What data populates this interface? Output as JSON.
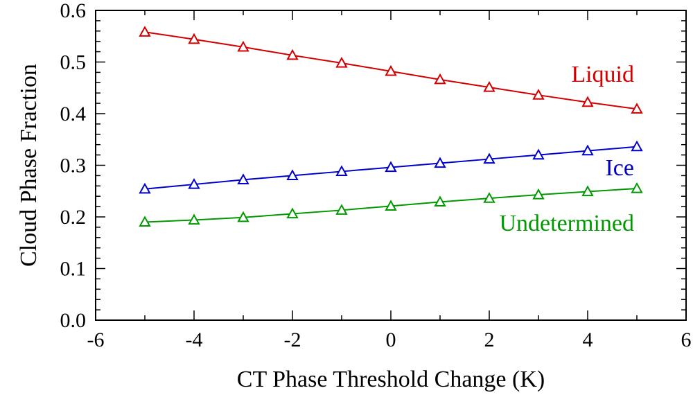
{
  "chart_data": {
    "type": "line",
    "xlabel": "CT Phase Threshold Change (K)",
    "ylabel": "Cloud Phase Fraction",
    "xlim": [
      -6,
      6
    ],
    "ylim": [
      0.0,
      0.6
    ],
    "xticks": [
      -6,
      -4,
      -2,
      0,
      2,
      4,
      6
    ],
    "xtick_labels": [
      "-6",
      "-4",
      "-2",
      "0",
      "2",
      "4",
      "6"
    ],
    "yticks": [
      0.0,
      0.1,
      0.2,
      0.3,
      0.4,
      0.5,
      0.6
    ],
    "ytick_labels": [
      "0.0",
      "0.1",
      "0.2",
      "0.3",
      "0.4",
      "0.5",
      "0.6"
    ],
    "x": [
      -5,
      -4,
      -3,
      -2,
      -1,
      0,
      1,
      2,
      3,
      4,
      5
    ],
    "grid": false,
    "marker": "triangle-open",
    "series": [
      {
        "name": "Liquid",
        "color": "#d40000",
        "values": [
          0.558,
          0.544,
          0.529,
          0.513,
          0.498,
          0.482,
          0.466,
          0.451,
          0.436,
          0.422,
          0.409
        ]
      },
      {
        "name": "Ice",
        "color": "#0000cc",
        "values": [
          0.254,
          0.263,
          0.272,
          0.28,
          0.288,
          0.296,
          0.304,
          0.312,
          0.32,
          0.328,
          0.336
        ]
      },
      {
        "name": "Undetermined",
        "color": "#009900",
        "values": [
          0.19,
          0.194,
          0.199,
          0.206,
          0.213,
          0.221,
          0.229,
          0.236,
          0.243,
          0.249,
          0.255
        ]
      }
    ]
  }
}
